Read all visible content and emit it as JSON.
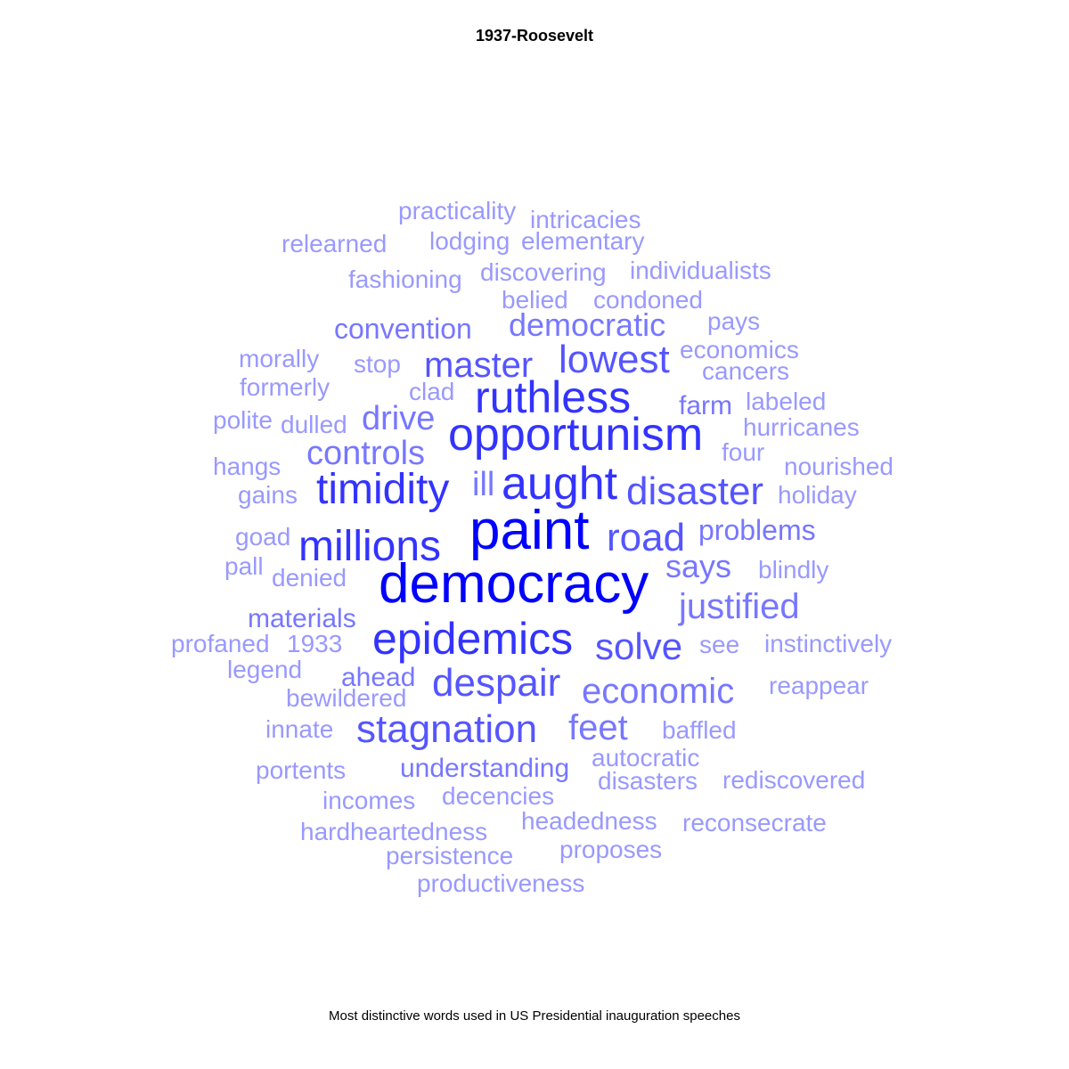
{
  "title": "1937-Roosevelt",
  "caption": "Most distinctive words used in US Presidential inauguration speeches",
  "colors": {
    "tier1": "#0000ff",
    "tier2": "#3333ff",
    "tier3": "#5555ff",
    "tier4": "#7777ff",
    "tier5": "#9999ff"
  },
  "chart_data": {
    "type": "wordcloud",
    "title": "1937-Roosevelt",
    "words": [
      {
        "text": "democracy",
        "weight": 5
      },
      {
        "text": "paint",
        "weight": 5
      },
      {
        "text": "opportunism",
        "weight": 4
      },
      {
        "text": "ruthless",
        "weight": 4
      },
      {
        "text": "aught",
        "weight": 4
      },
      {
        "text": "timidity",
        "weight": 4
      },
      {
        "text": "epidemics",
        "weight": 4
      },
      {
        "text": "millions",
        "weight": 4
      },
      {
        "text": "disaster",
        "weight": 3.5
      },
      {
        "text": "despair",
        "weight": 3.5
      },
      {
        "text": "stagnation",
        "weight": 3.5
      },
      {
        "text": "road",
        "weight": 3.5
      },
      {
        "text": "lowest",
        "weight": 3.5
      },
      {
        "text": "master",
        "weight": 3.5
      },
      {
        "text": "solve",
        "weight": 3.5
      },
      {
        "text": "economic",
        "weight": 3
      },
      {
        "text": "justified",
        "weight": 3
      },
      {
        "text": "feet",
        "weight": 3
      },
      {
        "text": "controls",
        "weight": 3
      },
      {
        "text": "drive",
        "weight": 3
      },
      {
        "text": "ill",
        "weight": 3
      },
      {
        "text": "says",
        "weight": 3
      },
      {
        "text": "democratic",
        "weight": 3
      },
      {
        "text": "convention",
        "weight": 2.5
      },
      {
        "text": "problems",
        "weight": 2.5
      },
      {
        "text": "understanding",
        "weight": 2.5
      },
      {
        "text": "farm",
        "weight": 2.5
      },
      {
        "text": "ahead",
        "weight": 2.5
      },
      {
        "text": "materials",
        "weight": 2.5
      },
      {
        "text": "practicality",
        "weight": 2
      },
      {
        "text": "intricacies",
        "weight": 2
      },
      {
        "text": "relearned",
        "weight": 2
      },
      {
        "text": "lodging",
        "weight": 2
      },
      {
        "text": "elementary",
        "weight": 2
      },
      {
        "text": "fashioning",
        "weight": 2
      },
      {
        "text": "discovering",
        "weight": 2
      },
      {
        "text": "individualists",
        "weight": 2
      },
      {
        "text": "belied",
        "weight": 2
      },
      {
        "text": "condoned",
        "weight": 2
      },
      {
        "text": "pays",
        "weight": 2
      },
      {
        "text": "economics",
        "weight": 2
      },
      {
        "text": "morally",
        "weight": 2
      },
      {
        "text": "stop",
        "weight": 2
      },
      {
        "text": "cancers",
        "weight": 2
      },
      {
        "text": "formerly",
        "weight": 2
      },
      {
        "text": "clad",
        "weight": 2
      },
      {
        "text": "labeled",
        "weight": 2
      },
      {
        "text": "polite",
        "weight": 2
      },
      {
        "text": "dulled",
        "weight": 2
      },
      {
        "text": "hurricanes",
        "weight": 2
      },
      {
        "text": "four",
        "weight": 2
      },
      {
        "text": "hangs",
        "weight": 2
      },
      {
        "text": "nourished",
        "weight": 2
      },
      {
        "text": "gains",
        "weight": 2
      },
      {
        "text": "holiday",
        "weight": 2
      },
      {
        "text": "goad",
        "weight": 2
      },
      {
        "text": "pall",
        "weight": 2
      },
      {
        "text": "denied",
        "weight": 2
      },
      {
        "text": "blindly",
        "weight": 2
      },
      {
        "text": "profaned",
        "weight": 2
      },
      {
        "text": "1933",
        "weight": 2
      },
      {
        "text": "see",
        "weight": 2
      },
      {
        "text": "instinctively",
        "weight": 2
      },
      {
        "text": "legend",
        "weight": 2
      },
      {
        "text": "reappear",
        "weight": 2
      },
      {
        "text": "bewildered",
        "weight": 2
      },
      {
        "text": "innate",
        "weight": 2
      },
      {
        "text": "baffled",
        "weight": 2
      },
      {
        "text": "autocratic",
        "weight": 2
      },
      {
        "text": "portents",
        "weight": 2
      },
      {
        "text": "disasters",
        "weight": 2
      },
      {
        "text": "rediscovered",
        "weight": 2
      },
      {
        "text": "incomes",
        "weight": 2
      },
      {
        "text": "decencies",
        "weight": 2
      },
      {
        "text": "headedness",
        "weight": 2
      },
      {
        "text": "reconsecrate",
        "weight": 2
      },
      {
        "text": "hardheartedness",
        "weight": 2
      },
      {
        "text": "persistence",
        "weight": 2
      },
      {
        "text": "proposes",
        "weight": 2
      },
      {
        "text": "productiveness",
        "weight": 2
      }
    ]
  }
}
